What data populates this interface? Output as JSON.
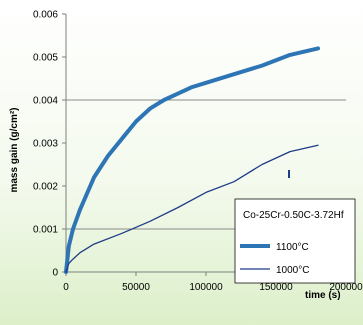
{
  "chart_data": {
    "type": "line",
    "xlabel": "time (s)",
    "ylabel": "mass gain (g/cm²)",
    "xlim": [
      0,
      200000
    ],
    "ylim": [
      0,
      0.006
    ],
    "x_ticks": [
      0,
      50000,
      100000,
      150000,
      200000
    ],
    "x_tick_labels": [
      "0",
      "50000",
      "100000",
      "150000",
      "200000"
    ],
    "y_ticks": [
      0,
      0.001,
      0.002,
      0.003,
      0.004,
      0.005,
      0.006
    ],
    "y_tick_labels": [
      "0",
      "0.001",
      "0.002",
      "0.003",
      "0.004",
      "0.005",
      "0.006"
    ],
    "grid": "horizontal lines at 0.001 and 0.004",
    "background": "white-to-pale-green vertical gradient",
    "legend": {
      "position": "bottom-right",
      "title": "Co-25Cr-0.50C-3.72Hf"
    },
    "series": [
      {
        "name": "1100°C",
        "color": "#2E75B6",
        "line_style": "thick",
        "x": [
          0,
          2000,
          5000,
          10000,
          20000,
          30000,
          40000,
          50000,
          60000,
          70000,
          80000,
          90000,
          100000,
          120000,
          140000,
          160000,
          180000
        ],
        "y": [
          0,
          0.0006,
          0.001,
          0.00145,
          0.0022,
          0.0027,
          0.0031,
          0.0035,
          0.0038,
          0.004,
          0.00415,
          0.0043,
          0.0044,
          0.0046,
          0.0048,
          0.00505,
          0.0052
        ]
      },
      {
        "name": "1000°C",
        "color": "#1F3C88",
        "line_style": "thin",
        "x": [
          0,
          2000,
          5000,
          10000,
          20000,
          40000,
          60000,
          80000,
          100000,
          120000,
          140000,
          160000,
          180000
        ],
        "y": [
          0,
          0.0002,
          0.0003,
          0.00045,
          0.00065,
          0.0009,
          0.00118,
          0.0015,
          0.00185,
          0.0021,
          0.0025,
          0.0028,
          0.00295
        ]
      }
    ]
  }
}
